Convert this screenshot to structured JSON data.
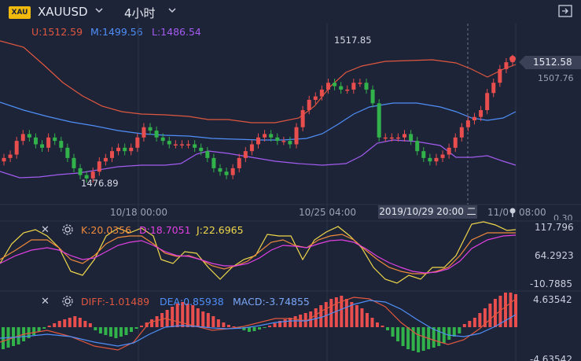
{
  "header": {
    "logo_text": "XAU",
    "symbol": "XAUUSD",
    "timeframe": "4小时",
    "symbol_dropdown_icon": "chevron-down-icon",
    "timeframe_dropdown_icon": "chevron-down-icon",
    "export_icon": "export-icon"
  },
  "boll": {
    "upper": "U:1512.59",
    "middle": "M:1499.56",
    "lower": "L:1486.54",
    "colors": {
      "upper": "#e0573f",
      "middle": "#4f8ff7",
      "lower": "#a35cf0"
    }
  },
  "price_labels": {
    "high_marker": "1517.85",
    "low_marker": "1476.89",
    "current_price": "1512.58",
    "axis_price": "1507.76"
  },
  "x_axis": {
    "label1": "10/18 00:00",
    "label2": "10/25 04:00",
    "crosshair_time": "2019/10/29 20:00 二",
    "label3_partial": "11/0",
    "label3_tail": "08:00"
  },
  "kdj": {
    "k": "K:20.0356",
    "d": "D:18.7051",
    "j": "J:22.6965",
    "axis_top": "117.796",
    "axis_mid": "64.2923",
    "axis_bottom": "-10.7885",
    "axis_clip": "0.30",
    "colors": {
      "k": "#f08a3c",
      "d": "#e040e0",
      "j": "#f0d84a"
    }
  },
  "macd": {
    "diff": "DIFF:-1.01489",
    "dea": "DEA:0.85938",
    "macd": "MACD:-3.74855",
    "axis_top": "4.63542",
    "axis_bottom": "-4.63542",
    "colors": {
      "diff": "#e0573f",
      "dea": "#4f8ff7",
      "macd": "#7aa7f7"
    }
  },
  "colors": {
    "up": "#e94e4e",
    "down": "#32b24a",
    "background": "#1d2438"
  },
  "chart_data": {
    "type": "candlestick",
    "symbol": "XAUUSD",
    "timeframe": "4小时",
    "candles_close": [
      1483,
      1484,
      1488,
      1490,
      1489,
      1487,
      1486,
      1489,
      1488,
      1486,
      1483,
      1480,
      1478,
      1477,
      1479,
      1482,
      1483,
      1485,
      1486,
      1485,
      1486,
      1489,
      1492,
      1491,
      1489,
      1488,
      1487,
      1487,
      1487,
      1487,
      1486,
      1485,
      1483,
      1480,
      1479,
      1478,
      1480,
      1483,
      1485,
      1487,
      1489,
      1490,
      1489,
      1488,
      1488,
      1487,
      1492,
      1497,
      1500,
      1501,
      1503,
      1505,
      1504,
      1503,
      1503,
      1505,
      1505,
      1503,
      1499,
      1489,
      1489,
      1489,
      1489,
      1490,
      1488,
      1485,
      1483,
      1482,
      1483,
      1484,
      1486,
      1489,
      1492,
      1494,
      1495,
      1497,
      1502,
      1505,
      1509,
      1511,
      1512
    ],
    "boll_upper": [
      1510,
      1509,
      1507,
      1505,
      1503,
      1501,
      1499,
      1497,
      1494,
      1493,
      1492,
      1492,
      1491,
      1491,
      1492,
      1492,
      1492,
      1491,
      1491,
      1491,
      1491,
      1491,
      1491,
      1491,
      1491,
      1491,
      1491,
      1492,
      1492,
      1493,
      1494,
      1495,
      1497,
      1499,
      1501,
      1503,
      1505,
      1506,
      1507,
      1507,
      1507,
      1507,
      1507,
      1507,
      1507,
      1507,
      1507,
      1507,
      1506,
      1506,
      1506,
      1505,
      1506,
      1508,
      1512,
      1512.59
    ],
    "boll_middle": [
      1493,
      1492,
      1491,
      1490,
      1489,
      1488,
      1487,
      1487,
      1486,
      1486,
      1486,
      1486,
      1486,
      1486,
      1486,
      1486,
      1486,
      1485,
      1485,
      1485,
      1485,
      1486,
      1486,
      1487,
      1488,
      1489,
      1491,
      1493,
      1495,
      1496,
      1497,
      1497,
      1497,
      1497,
      1496,
      1495,
      1493,
      1491,
      1490,
      1490,
      1491,
      1492,
      1493,
      1494,
      1494,
      1495,
      1497,
      1499.56
    ],
    "boll_lower": [
      1478,
      1477,
      1477,
      1477,
      1478,
      1478,
      1479,
      1479,
      1480,
      1480,
      1480,
      1480,
      1480,
      1480,
      1480,
      1480,
      1480,
      1480,
      1480,
      1480,
      1480,
      1480,
      1480,
      1481,
      1481,
      1482,
      1482,
      1482,
      1482,
      1482,
      1482,
      1481,
      1481,
      1481,
      1481,
      1481,
      1481,
      1482,
      1483,
      1484,
      1484,
      1486.54
    ]
  }
}
